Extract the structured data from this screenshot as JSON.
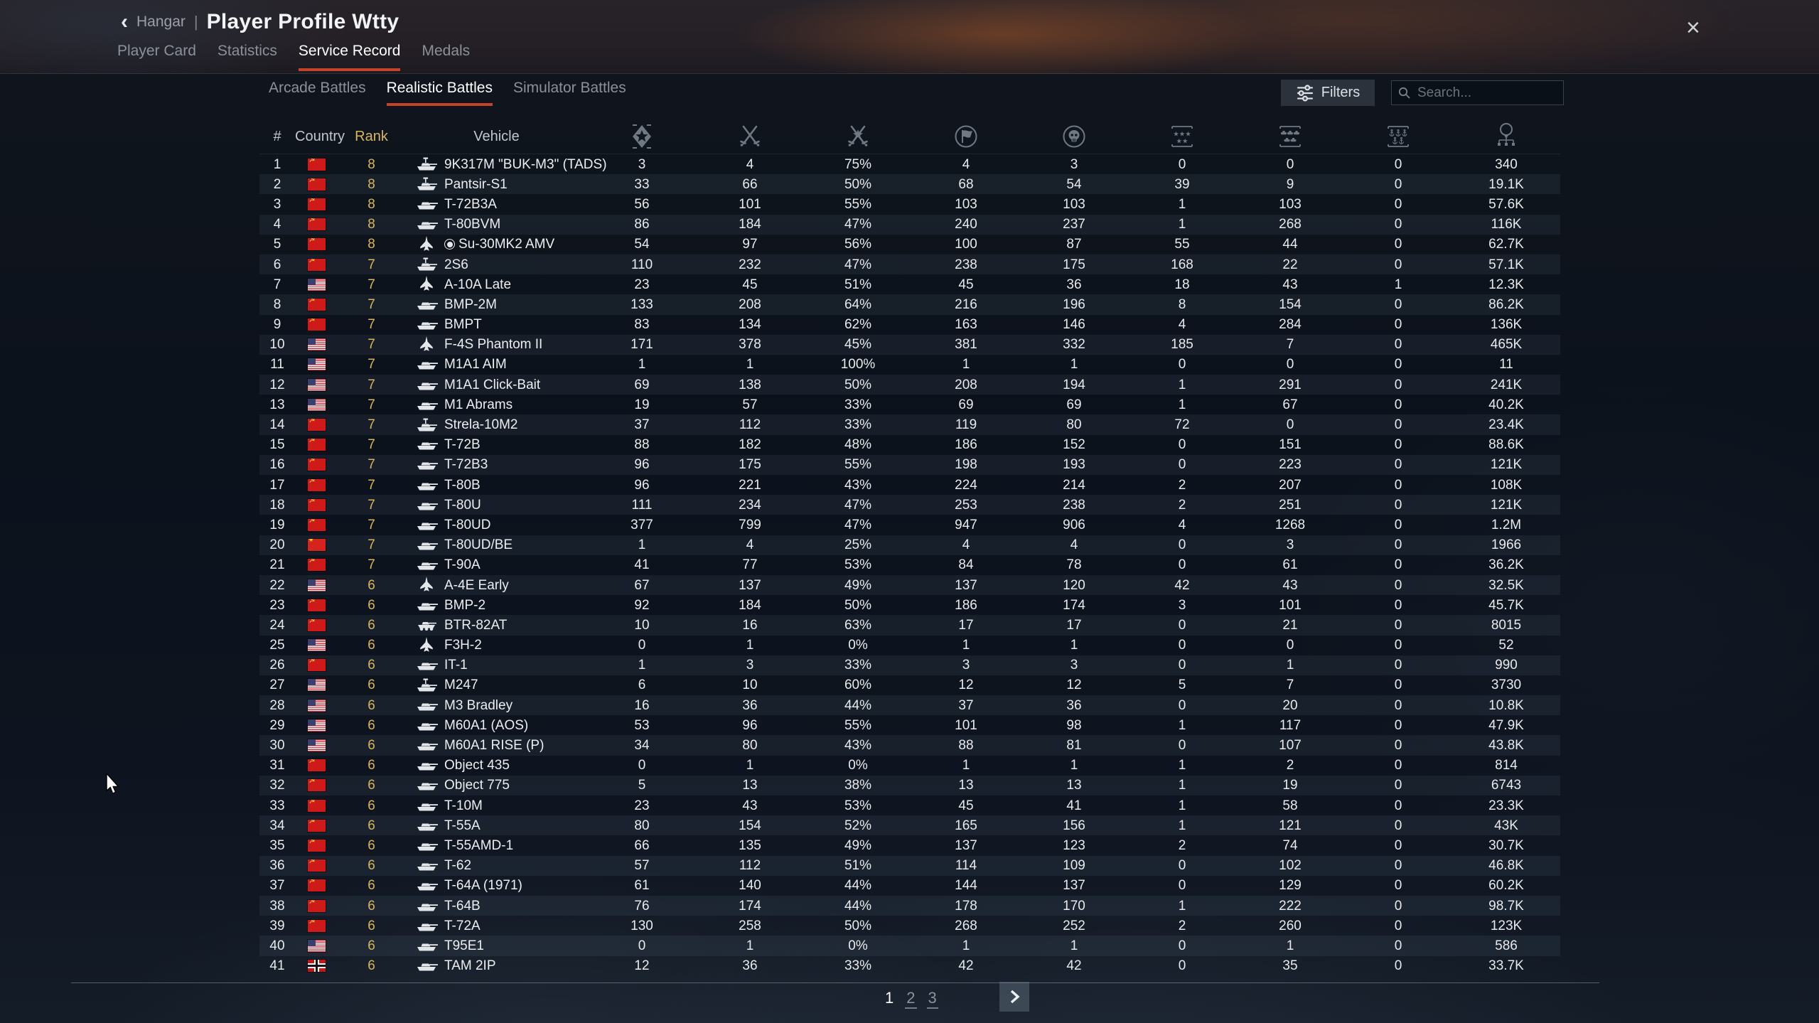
{
  "header": {
    "back_icon": "‹",
    "back_label": "Hangar",
    "separator": "|",
    "title": "Player Profile Wtty",
    "close_icon": "×"
  },
  "main_tabs": [
    {
      "label": "Player Card",
      "active": false
    },
    {
      "label": "Statistics",
      "active": false
    },
    {
      "label": "Service Record",
      "active": true
    },
    {
      "label": "Medals",
      "active": false
    }
  ],
  "sub_tabs": [
    {
      "label": "Arcade Battles",
      "active": false
    },
    {
      "label": "Realistic Battles",
      "active": true
    },
    {
      "label": "Simulator Battles",
      "active": false
    }
  ],
  "toolbar": {
    "filters_label": "Filters",
    "filters_icon": "sliders-icon",
    "search_placeholder": "Search...",
    "search_icon": "magnifier-icon"
  },
  "table": {
    "columns": {
      "num": "#",
      "country": "Country",
      "rank": "Rank",
      "vehicle": "Vehicle",
      "stat_icons": [
        "battles-emblem-icon",
        "respawns-swords-icon",
        "victories-swords-star-icon",
        "air-targets-flag-icon",
        "deaths-skull-icon",
        "aircraft-destroyed-stars-icon",
        "ground-destroyed-tanks-icon",
        "naval-destroyed-anchors-icon",
        "score-balloon-icon"
      ]
    },
    "rows": [
      {
        "num": "1",
        "country": "ussr",
        "rank": "8",
        "vehicle": "9K317M \"BUK-M3\" (TADS)",
        "type": "spaa",
        "premium": false,
        "stats": [
          "3",
          "4",
          "75%",
          "4",
          "3",
          "0",
          "0",
          "0",
          "340"
        ]
      },
      {
        "num": "2",
        "country": "ussr",
        "rank": "8",
        "vehicle": "Pantsir-S1",
        "type": "spaa",
        "premium": false,
        "stats": [
          "33",
          "66",
          "50%",
          "68",
          "54",
          "39",
          "9",
          "0",
          "19.1K"
        ]
      },
      {
        "num": "3",
        "country": "ussr",
        "rank": "8",
        "vehicle": "T-72B3A",
        "type": "tank",
        "premium": false,
        "stats": [
          "56",
          "101",
          "55%",
          "103",
          "103",
          "1",
          "103",
          "0",
          "57.6K"
        ]
      },
      {
        "num": "4",
        "country": "ussr",
        "rank": "8",
        "vehicle": "T-80BVM",
        "type": "tank",
        "premium": false,
        "stats": [
          "86",
          "184",
          "47%",
          "240",
          "237",
          "1",
          "268",
          "0",
          "116K"
        ]
      },
      {
        "num": "5",
        "country": "ussr",
        "rank": "8",
        "vehicle": "Su-30MK2 AMV",
        "type": "jet",
        "premium": true,
        "stats": [
          "54",
          "97",
          "56%",
          "100",
          "87",
          "55",
          "44",
          "0",
          "62.7K"
        ]
      },
      {
        "num": "6",
        "country": "ussr",
        "rank": "7",
        "vehicle": "2S6",
        "type": "spaa",
        "premium": false,
        "stats": [
          "110",
          "232",
          "47%",
          "238",
          "175",
          "168",
          "22",
          "0",
          "57.1K"
        ]
      },
      {
        "num": "7",
        "country": "usa",
        "rank": "7",
        "vehicle": "A-10A Late",
        "type": "jet",
        "premium": false,
        "stats": [
          "23",
          "45",
          "51%",
          "45",
          "36",
          "18",
          "43",
          "1",
          "12.3K"
        ]
      },
      {
        "num": "8",
        "country": "ussr",
        "rank": "7",
        "vehicle": "BMP-2M",
        "type": "tank",
        "premium": false,
        "stats": [
          "133",
          "208",
          "64%",
          "216",
          "196",
          "8",
          "154",
          "0",
          "86.2K"
        ]
      },
      {
        "num": "9",
        "country": "ussr",
        "rank": "7",
        "vehicle": "BMPT",
        "type": "tank",
        "premium": false,
        "stats": [
          "83",
          "134",
          "62%",
          "163",
          "146",
          "4",
          "284",
          "0",
          "136K"
        ]
      },
      {
        "num": "10",
        "country": "usa",
        "rank": "7",
        "vehicle": "F-4S Phantom II",
        "type": "jet",
        "premium": false,
        "stats": [
          "171",
          "378",
          "45%",
          "381",
          "332",
          "185",
          "7",
          "0",
          "465K"
        ]
      },
      {
        "num": "11",
        "country": "usa",
        "rank": "7",
        "vehicle": "M1A1 AIM",
        "type": "tank",
        "premium": false,
        "stats": [
          "1",
          "1",
          "100%",
          "1",
          "1",
          "0",
          "0",
          "0",
          "11"
        ]
      },
      {
        "num": "12",
        "country": "usa",
        "rank": "7",
        "vehicle": "M1A1 Click-Bait",
        "type": "tank",
        "premium": false,
        "stats": [
          "69",
          "138",
          "50%",
          "208",
          "194",
          "1",
          "291",
          "0",
          "241K"
        ]
      },
      {
        "num": "13",
        "country": "usa",
        "rank": "7",
        "vehicle": "M1 Abrams",
        "type": "tank",
        "premium": false,
        "stats": [
          "19",
          "57",
          "33%",
          "69",
          "69",
          "1",
          "67",
          "0",
          "40.2K"
        ]
      },
      {
        "num": "14",
        "country": "ussr",
        "rank": "7",
        "vehicle": "Strela-10M2",
        "type": "spaa",
        "premium": false,
        "stats": [
          "37",
          "112",
          "33%",
          "119",
          "80",
          "72",
          "0",
          "0",
          "23.4K"
        ]
      },
      {
        "num": "15",
        "country": "ussr",
        "rank": "7",
        "vehicle": "T-72B",
        "type": "tank",
        "premium": false,
        "stats": [
          "88",
          "182",
          "48%",
          "186",
          "152",
          "0",
          "151",
          "0",
          "88.6K"
        ]
      },
      {
        "num": "16",
        "country": "ussr",
        "rank": "7",
        "vehicle": "T-72B3",
        "type": "tank",
        "premium": false,
        "stats": [
          "96",
          "175",
          "55%",
          "198",
          "193",
          "0",
          "223",
          "0",
          "121K"
        ]
      },
      {
        "num": "17",
        "country": "ussr",
        "rank": "7",
        "vehicle": "T-80B",
        "type": "tank",
        "premium": false,
        "stats": [
          "96",
          "221",
          "43%",
          "224",
          "214",
          "2",
          "207",
          "0",
          "108K"
        ]
      },
      {
        "num": "18",
        "country": "ussr",
        "rank": "7",
        "vehicle": "T-80U",
        "type": "tank",
        "premium": false,
        "stats": [
          "111",
          "234",
          "47%",
          "253",
          "238",
          "2",
          "251",
          "0",
          "121K"
        ]
      },
      {
        "num": "19",
        "country": "ussr",
        "rank": "7",
        "vehicle": "T-80UD",
        "type": "tank",
        "premium": false,
        "stats": [
          "377",
          "799",
          "47%",
          "947",
          "906",
          "4",
          "1268",
          "0",
          "1.2M"
        ]
      },
      {
        "num": "20",
        "country": "china",
        "rank": "7",
        "vehicle": "T-80UD/BE",
        "type": "tank",
        "premium": false,
        "stats": [
          "1",
          "4",
          "25%",
          "4",
          "4",
          "0",
          "3",
          "0",
          "1966"
        ]
      },
      {
        "num": "21",
        "country": "ussr",
        "rank": "7",
        "vehicle": "T-90A",
        "type": "tank",
        "premium": false,
        "stats": [
          "41",
          "77",
          "53%",
          "84",
          "78",
          "0",
          "61",
          "0",
          "36.2K"
        ]
      },
      {
        "num": "22",
        "country": "usa",
        "rank": "6",
        "vehicle": "A-4E Early",
        "type": "jet",
        "premium": false,
        "stats": [
          "67",
          "137",
          "49%",
          "137",
          "120",
          "42",
          "43",
          "0",
          "32.5K"
        ]
      },
      {
        "num": "23",
        "country": "ussr",
        "rank": "6",
        "vehicle": "BMP-2",
        "type": "tank",
        "premium": false,
        "stats": [
          "92",
          "184",
          "50%",
          "186",
          "174",
          "3",
          "101",
          "0",
          "45.7K"
        ]
      },
      {
        "num": "24",
        "country": "ussr",
        "rank": "6",
        "vehicle": "BTR-82AT",
        "type": "wheeled",
        "premium": false,
        "stats": [
          "10",
          "16",
          "63%",
          "17",
          "17",
          "0",
          "21",
          "0",
          "8015"
        ]
      },
      {
        "num": "25",
        "country": "usa",
        "rank": "6",
        "vehicle": "F3H-2",
        "type": "jet",
        "premium": false,
        "stats": [
          "0",
          "1",
          "0%",
          "1",
          "1",
          "0",
          "0",
          "0",
          "52"
        ]
      },
      {
        "num": "26",
        "country": "ussr",
        "rank": "6",
        "vehicle": "IT-1",
        "type": "tank",
        "premium": false,
        "stats": [
          "1",
          "3",
          "33%",
          "3",
          "3",
          "0",
          "1",
          "0",
          "990"
        ]
      },
      {
        "num": "27",
        "country": "usa",
        "rank": "6",
        "vehicle": "M247",
        "type": "spaa",
        "premium": false,
        "stats": [
          "6",
          "10",
          "60%",
          "12",
          "12",
          "5",
          "7",
          "0",
          "3730"
        ]
      },
      {
        "num": "28",
        "country": "usa",
        "rank": "6",
        "vehicle": "M3 Bradley",
        "type": "tank",
        "premium": false,
        "stats": [
          "16",
          "36",
          "44%",
          "37",
          "36",
          "0",
          "20",
          "0",
          "10.8K"
        ]
      },
      {
        "num": "29",
        "country": "usa",
        "rank": "6",
        "vehicle": "M60A1 (AOS)",
        "type": "tank",
        "premium": false,
        "stats": [
          "53",
          "96",
          "55%",
          "101",
          "98",
          "1",
          "117",
          "0",
          "47.9K"
        ]
      },
      {
        "num": "30",
        "country": "usa",
        "rank": "6",
        "vehicle": "M60A1 RISE (P)",
        "type": "tank",
        "premium": false,
        "stats": [
          "34",
          "80",
          "43%",
          "88",
          "81",
          "0",
          "107",
          "0",
          "43.8K"
        ]
      },
      {
        "num": "31",
        "country": "ussr",
        "rank": "6",
        "vehicle": "Object 435",
        "type": "tank",
        "premium": false,
        "stats": [
          "0",
          "1",
          "0%",
          "1",
          "1",
          "1",
          "2",
          "0",
          "814"
        ]
      },
      {
        "num": "32",
        "country": "ussr",
        "rank": "6",
        "vehicle": "Object 775",
        "type": "tank",
        "premium": false,
        "stats": [
          "5",
          "13",
          "38%",
          "13",
          "13",
          "1",
          "19",
          "0",
          "6743"
        ]
      },
      {
        "num": "33",
        "country": "ussr",
        "rank": "6",
        "vehicle": "T-10M",
        "type": "tank",
        "premium": false,
        "stats": [
          "23",
          "43",
          "53%",
          "45",
          "41",
          "1",
          "58",
          "0",
          "23.3K"
        ]
      },
      {
        "num": "34",
        "country": "ussr",
        "rank": "6",
        "vehicle": "T-55A",
        "type": "tank",
        "premium": false,
        "stats": [
          "80",
          "154",
          "52%",
          "165",
          "156",
          "1",
          "121",
          "0",
          "43K"
        ]
      },
      {
        "num": "35",
        "country": "ussr",
        "rank": "6",
        "vehicle": "T-55AMD-1",
        "type": "tank",
        "premium": false,
        "stats": [
          "66",
          "135",
          "49%",
          "137",
          "123",
          "2",
          "74",
          "0",
          "30.7K"
        ]
      },
      {
        "num": "36",
        "country": "ussr",
        "rank": "6",
        "vehicle": "T-62",
        "type": "tank",
        "premium": false,
        "stats": [
          "57",
          "112",
          "51%",
          "114",
          "109",
          "0",
          "102",
          "0",
          "46.8K"
        ]
      },
      {
        "num": "37",
        "country": "ussr",
        "rank": "6",
        "vehicle": "T-64A (1971)",
        "type": "tank",
        "premium": false,
        "stats": [
          "61",
          "140",
          "44%",
          "144",
          "137",
          "0",
          "129",
          "0",
          "60.2K"
        ]
      },
      {
        "num": "38",
        "country": "ussr",
        "rank": "6",
        "vehicle": "T-64B",
        "type": "tank",
        "premium": false,
        "stats": [
          "76",
          "174",
          "44%",
          "178",
          "170",
          "1",
          "222",
          "0",
          "98.7K"
        ]
      },
      {
        "num": "39",
        "country": "ussr",
        "rank": "6",
        "vehicle": "T-72A",
        "type": "tank",
        "premium": false,
        "stats": [
          "130",
          "258",
          "50%",
          "268",
          "252",
          "2",
          "260",
          "0",
          "123K"
        ]
      },
      {
        "num": "40",
        "country": "usa",
        "rank": "6",
        "vehicle": "T95E1",
        "type": "tank",
        "premium": false,
        "stats": [
          "0",
          "1",
          "0%",
          "1",
          "1",
          "0",
          "1",
          "0",
          "586"
        ]
      },
      {
        "num": "41",
        "country": "germany",
        "rank": "6",
        "vehicle": "TAM 2IP",
        "type": "tank",
        "premium": false,
        "stats": [
          "12",
          "36",
          "33%",
          "42",
          "42",
          "0",
          "35",
          "0",
          "33.7K"
        ]
      }
    ]
  },
  "pagination": {
    "pages": [
      {
        "label": "1",
        "current": true
      },
      {
        "label": "2",
        "current": false
      },
      {
        "label": "3",
        "current": false
      }
    ],
    "next_icon": "chevron-right-icon"
  },
  "colors": {
    "accent_orange": "#c4432a",
    "rank_gold": "#d9b65c",
    "background": "#0c121c"
  }
}
